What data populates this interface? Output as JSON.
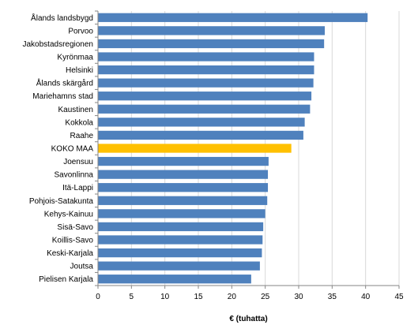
{
  "chart_data": {
    "type": "bar",
    "orientation": "horizontal",
    "categories": [
      "Ålands landsbygd",
      "Porvoo",
      "Jakobstadsregionen",
      "Kyrönmaa",
      "Helsinki",
      "Ålands skärgård",
      "Mariehamns stad",
      "Kaustinen",
      "Kokkola",
      "Raahe",
      "KOKO MAA",
      "Joensuu",
      "Savonlinna",
      "Itä-Lappi",
      "Pohjois-Satakunta",
      "Kehys-Kainuu",
      "Sisä-Savo",
      "Koillis-Savo",
      "Keski-Karjala",
      "Joutsa",
      "Pielisen Karjala"
    ],
    "values": [
      40.3,
      33.9,
      33.8,
      32.3,
      32.3,
      32.2,
      31.9,
      31.7,
      30.9,
      30.7,
      28.9,
      25.5,
      25.4,
      25.4,
      25.3,
      25.0,
      24.7,
      24.6,
      24.5,
      24.2,
      22.9
    ],
    "highlight_index": 10,
    "xlabel": "€ (tuhatta)",
    "xlim": [
      0,
      45
    ],
    "xticks": [
      0,
      5,
      10,
      15,
      20,
      25,
      30,
      35,
      40,
      45
    ],
    "grid": "vertical",
    "colors": {
      "bar": "#4f81bd",
      "highlight": "#ffc000",
      "grid": "#d9d9d9",
      "axis": "#868686"
    }
  }
}
